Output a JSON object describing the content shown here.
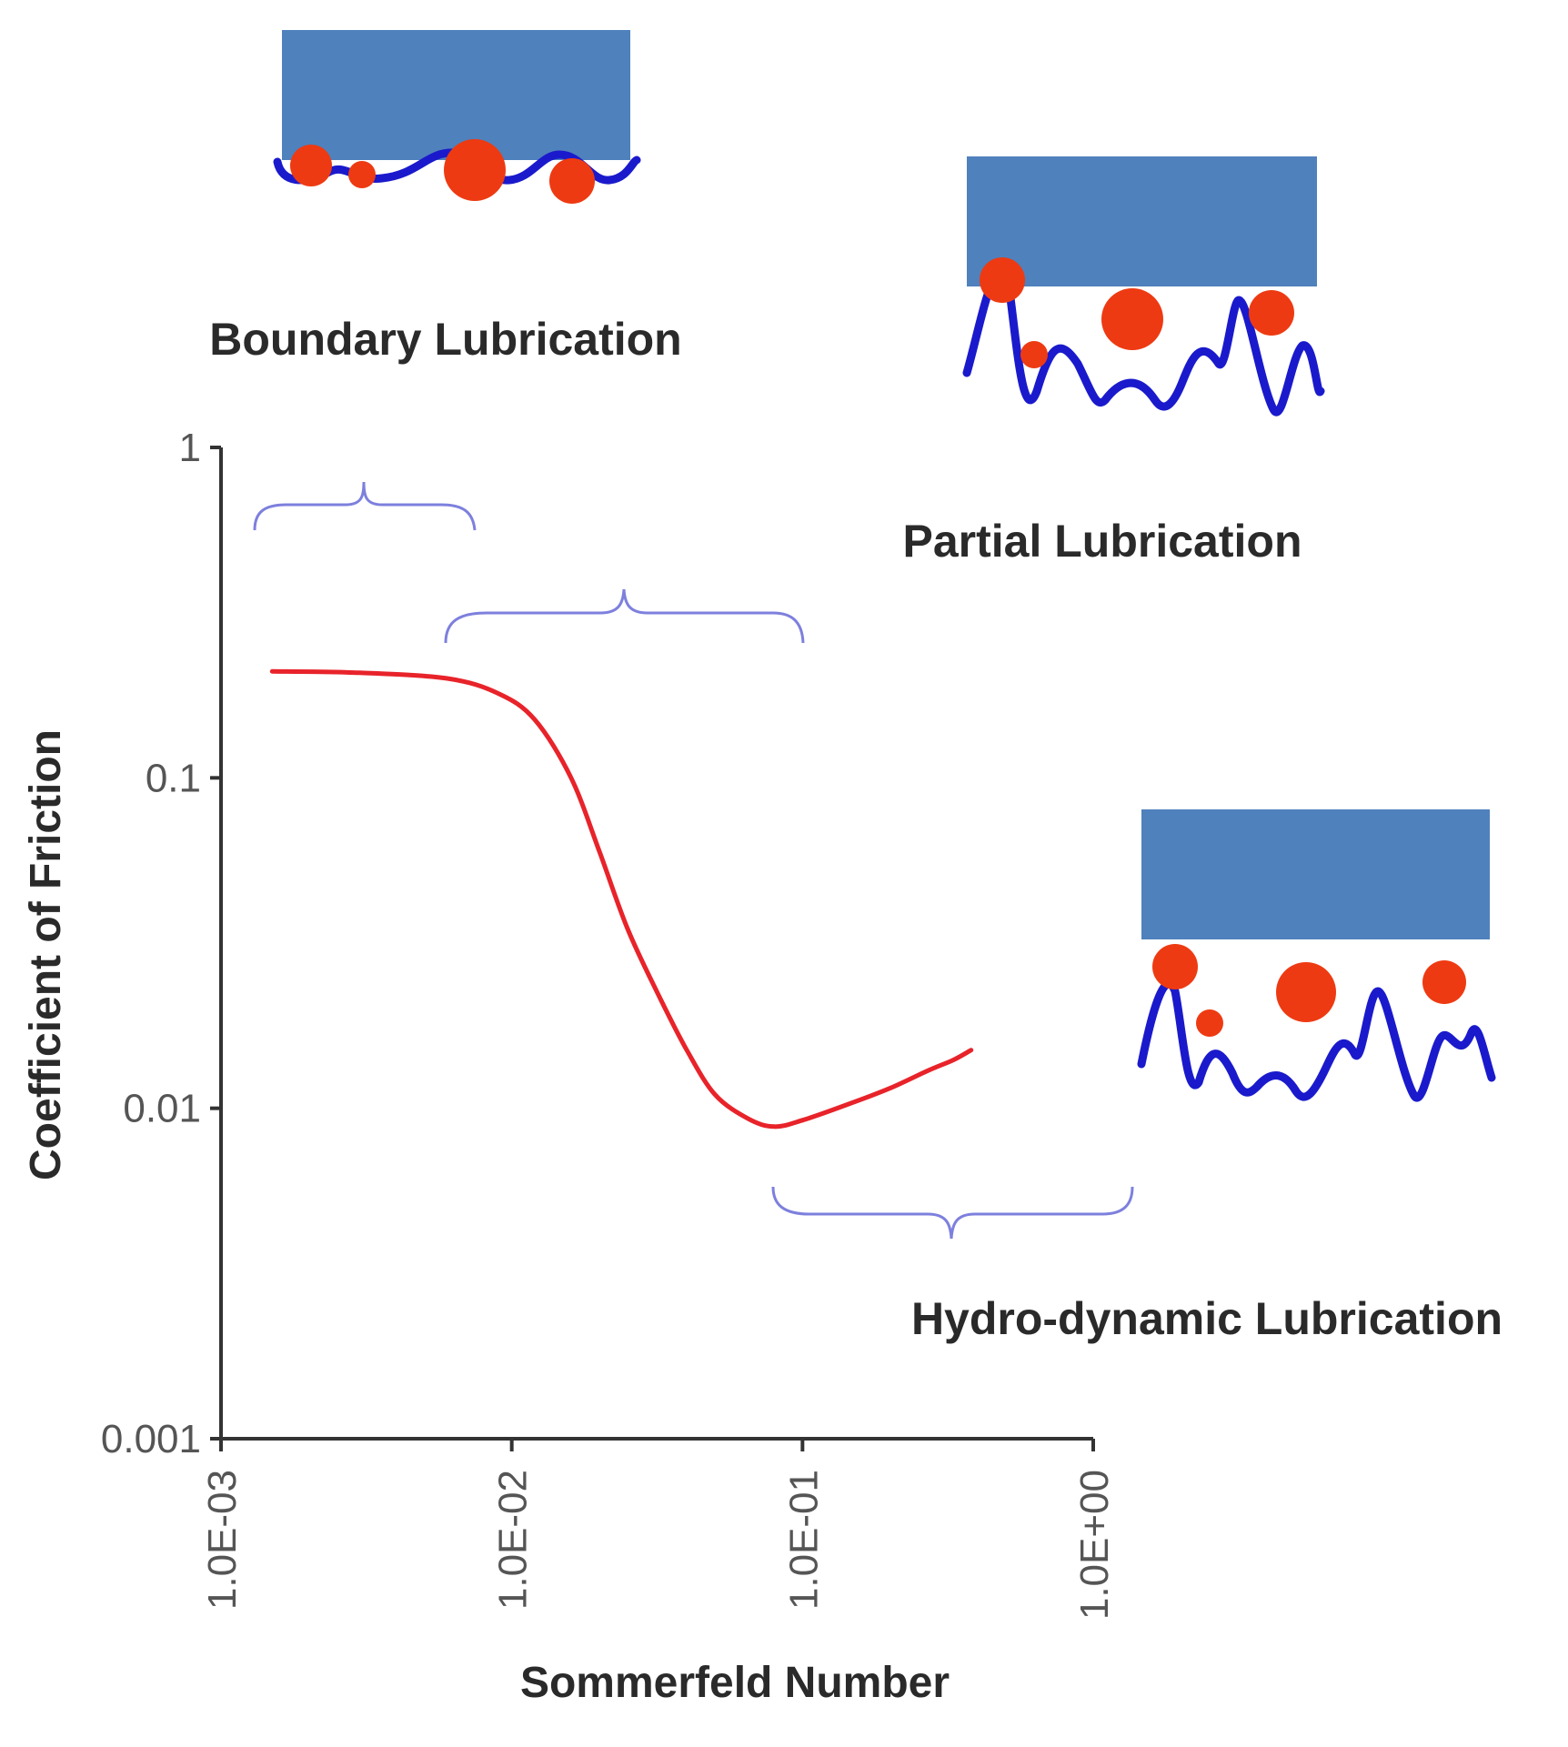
{
  "chart_data": {
    "type": "line",
    "title": "",
    "xlabel": "Sommerfeld Number",
    "ylabel": "Coefficient of Friction",
    "x_scale": "log",
    "y_scale": "log",
    "xlim": [
      0.001,
      1
    ],
    "ylim": [
      0.001,
      1
    ],
    "x_ticks": [
      0.001,
      0.01,
      0.1,
      1
    ],
    "x_tick_labels": [
      "1.0E-03",
      "1.0E-02",
      "1.0E-01",
      "1.0E+00"
    ],
    "y_ticks": [
      1,
      0.1,
      0.01,
      0.001
    ],
    "y_tick_labels": [
      "1",
      "0.1",
      "0.01",
      "0.001"
    ],
    "grid": false,
    "series": [
      {
        "color": "#e8232a",
        "x": [
          0.0015,
          0.003,
          0.006,
          0.009,
          0.012,
          0.016,
          0.02,
          0.025,
          0.032,
          0.04,
          0.05,
          0.065,
          0.08,
          0.1,
          0.14,
          0.2,
          0.27,
          0.33,
          0.38
        ],
        "y": [
          0.21,
          0.208,
          0.2,
          0.18,
          0.15,
          0.1,
          0.06,
          0.035,
          0.022,
          0.015,
          0.011,
          0.0093,
          0.0088,
          0.0092,
          0.0102,
          0.0115,
          0.013,
          0.014,
          0.015
        ]
      }
    ],
    "annotations": [
      {
        "text": "Boundary Lubrication",
        "x_range": [
          0.0012,
          0.0088
        ]
      },
      {
        "text": "Partial Lubrication",
        "x_range": [
          0.0081,
          0.115
        ]
      },
      {
        "text": "Hydro-dynamic Lubrication",
        "x_range": [
          0.11,
          1.4
        ]
      }
    ]
  },
  "colors": {
    "block": "#4f81bd",
    "surface": "#1a1acc",
    "particle": "#ee3a12",
    "brace": "#7d80dd",
    "curve": "#e8232a",
    "axis": "#333333"
  }
}
